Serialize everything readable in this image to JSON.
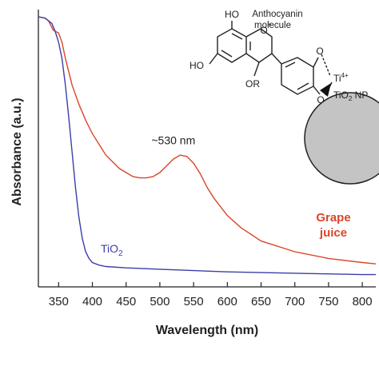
{
  "chart_data": {
    "type": "line",
    "title": "",
    "xlabel": "Wavelength (nm)",
    "ylabel": "Absorbance (a.u.)",
    "xlim": [
      320,
      820
    ],
    "ylim": [
      0,
      1
    ],
    "x_ticks": [
      350,
      400,
      450,
      500,
      550,
      600,
      650,
      700,
      750,
      800
    ],
    "grid": false,
    "y_tick_labels": false,
    "series": [
      {
        "name": "Grape juice",
        "color": "#d9462a",
        "x": [
          320,
          330,
          335,
          338,
          342,
          346,
          350,
          355,
          360,
          370,
          380,
          390,
          400,
          420,
          440,
          460,
          470,
          480,
          490,
          500,
          510,
          520,
          530,
          540,
          550,
          560,
          570,
          580,
          600,
          620,
          650,
          700,
          750,
          800,
          820
        ],
        "y": [
          0.985,
          0.98,
          0.97,
          0.955,
          0.935,
          0.93,
          0.925,
          0.89,
          0.83,
          0.73,
          0.66,
          0.6,
          0.55,
          0.47,
          0.42,
          0.39,
          0.385,
          0.385,
          0.39,
          0.405,
          0.43,
          0.455,
          0.47,
          0.465,
          0.44,
          0.4,
          0.35,
          0.31,
          0.245,
          0.2,
          0.15,
          0.11,
          0.085,
          0.07,
          0.065
        ]
      },
      {
        "name": "TiO2",
        "color": "#3b3ea8",
        "x": [
          320,
          330,
          335,
          340,
          345,
          350,
          355,
          360,
          365,
          370,
          375,
          380,
          385,
          390,
          395,
          400,
          410,
          420,
          450,
          500,
          600,
          700,
          800,
          820
        ],
        "y": [
          0.985,
          0.98,
          0.97,
          0.96,
          0.93,
          0.89,
          0.83,
          0.73,
          0.61,
          0.48,
          0.35,
          0.24,
          0.16,
          0.11,
          0.085,
          0.07,
          0.06,
          0.055,
          0.05,
          0.045,
          0.035,
          0.03,
          0.025,
          0.025
        ]
      }
    ],
    "annotations": [
      {
        "text": "~530 nm",
        "x": 520,
        "y": 0.51
      }
    ]
  },
  "labels": {
    "grape_line1": "Grape",
    "grape_line2": "juice",
    "tio2_main": "TiO",
    "tio2_sub": "2"
  },
  "molecule": {
    "oh_top": "HO",
    "oh_left": "HO",
    "name_line1": "Anthocyanin",
    "name_line2": "molecule",
    "ring_o": "O",
    "ring_plus": "+",
    "or_group": "OR",
    "o_upper": "O",
    "o_lower": "O",
    "ti_main": "Ti",
    "ti_sup": "4+",
    "np_main": "TiO",
    "np_sub": "2",
    "np_rest": " NP"
  }
}
